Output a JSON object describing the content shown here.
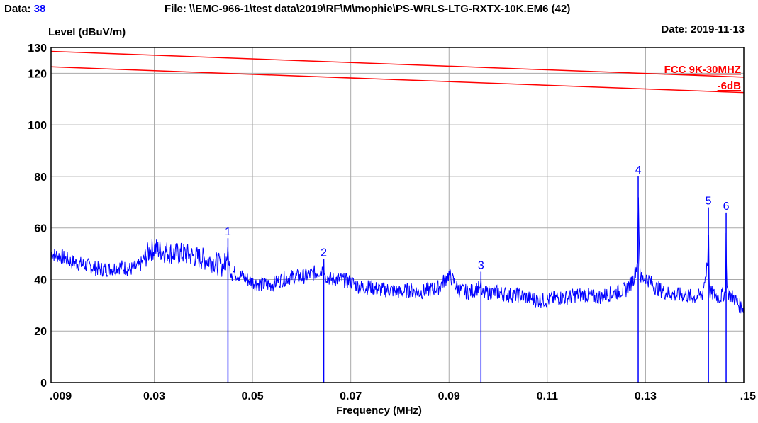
{
  "header": {
    "data_label": "Data:",
    "data_value": "38",
    "file_text": "File: \\\\EMC-966-1\\test data\\2019\\RF\\M\\mophie\\PS-WRLS-LTG-RXTX-10K.EM6  (42)",
    "date_text": "Date: 2019-11-13"
  },
  "colors": {
    "trace": "#0000ff",
    "limit": "#ff0000",
    "grid": "#a9a9a9",
    "frame": "#000000"
  },
  "chart_data": {
    "type": "line",
    "ylabel": "Level (dBuV/m)",
    "xlabel": "Frequency (MHz)",
    "xlim": [
      0.009,
      0.15
    ],
    "ylim": [
      0,
      130
    ],
    "grid": true,
    "x_ticks": [
      {
        "v": 0.009,
        "label": ".009"
      },
      {
        "v": 0.03,
        "label": "0.03"
      },
      {
        "v": 0.05,
        "label": "0.05"
      },
      {
        "v": 0.07,
        "label": "0.07"
      },
      {
        "v": 0.09,
        "label": "0.09"
      },
      {
        "v": 0.11,
        "label": "0.11"
      },
      {
        "v": 0.13,
        "label": "0.13"
      },
      {
        "v": 0.15,
        "label": ".15"
      }
    ],
    "y_ticks": [
      {
        "v": 0,
        "label": "0"
      },
      {
        "v": 20,
        "label": "20"
      },
      {
        "v": 40,
        "label": "40"
      },
      {
        "v": 60,
        "label": "60"
      },
      {
        "v": 80,
        "label": "80"
      },
      {
        "v": 100,
        "label": "100"
      },
      {
        "v": 120,
        "label": "120"
      },
      {
        "v": 130,
        "label": "130"
      }
    ],
    "limits": [
      {
        "name": "FCC 9K-30MHZ",
        "x": [
          0.009,
          0.15
        ],
        "y": [
          128.5,
          118.5
        ]
      },
      {
        "name": "-6dB",
        "x": [
          0.009,
          0.15
        ],
        "y": [
          122.5,
          112.5
        ]
      }
    ],
    "markers": [
      {
        "label": "1",
        "x": 0.045,
        "y": 56
      },
      {
        "label": "2",
        "x": 0.0645,
        "y": 48
      },
      {
        "label": "3",
        "x": 0.0965,
        "y": 43
      },
      {
        "label": "4",
        "x": 0.1285,
        "y": 80
      },
      {
        "label": "5",
        "x": 0.1428,
        "y": 68
      },
      {
        "label": "6",
        "x": 0.1464,
        "y": 66
      }
    ],
    "series": [
      {
        "x": [
          0.009,
          0.011,
          0.013,
          0.015,
          0.017,
          0.019,
          0.021,
          0.023,
          0.025,
          0.027,
          0.029,
          0.03,
          0.032,
          0.034,
          0.036,
          0.038,
          0.04,
          0.042,
          0.044,
          0.0449,
          0.045,
          0.0451,
          0.046,
          0.048,
          0.05,
          0.052,
          0.054,
          0.056,
          0.058,
          0.06,
          0.062,
          0.0644,
          0.0645,
          0.0646,
          0.066,
          0.068,
          0.07,
          0.072,
          0.074,
          0.076,
          0.078,
          0.08,
          0.082,
          0.084,
          0.086,
          0.088,
          0.09,
          0.092,
          0.094,
          0.0964,
          0.0965,
          0.0966,
          0.098,
          0.1,
          0.102,
          0.104,
          0.106,
          0.108,
          0.11,
          0.112,
          0.114,
          0.116,
          0.118,
          0.12,
          0.122,
          0.124,
          0.126,
          0.1275,
          0.1284,
          0.1285,
          0.1286,
          0.1288,
          0.129,
          0.1292,
          0.13,
          0.132,
          0.134,
          0.136,
          0.138,
          0.14,
          0.1415,
          0.1427,
          0.1428,
          0.1429,
          0.143,
          0.144,
          0.145,
          0.1463,
          0.1464,
          0.1465,
          0.147,
          0.148,
          0.149,
          0.15
        ],
        "y": [
          50,
          49,
          47,
          46,
          45,
          44,
          44,
          45,
          44,
          45,
          51,
          52,
          51,
          50,
          50,
          49,
          48,
          47,
          45,
          48,
          56,
          46,
          43,
          41,
          39,
          38,
          38,
          40,
          41,
          41,
          42,
          44,
          48,
          42,
          40,
          40,
          39,
          37,
          37,
          36,
          36,
          35,
          36,
          35,
          36,
          37,
          42,
          36,
          35,
          37,
          43,
          34,
          35,
          35,
          34,
          34,
          33,
          32,
          32,
          33,
          33,
          34,
          34,
          33,
          34,
          35,
          36,
          40,
          47,
          80,
          63,
          46,
          41,
          40,
          41,
          37,
          35,
          34,
          34,
          33,
          34,
          47,
          68,
          46,
          35,
          34,
          33,
          35,
          66,
          38,
          34,
          33,
          30,
          29
        ]
      }
    ]
  }
}
